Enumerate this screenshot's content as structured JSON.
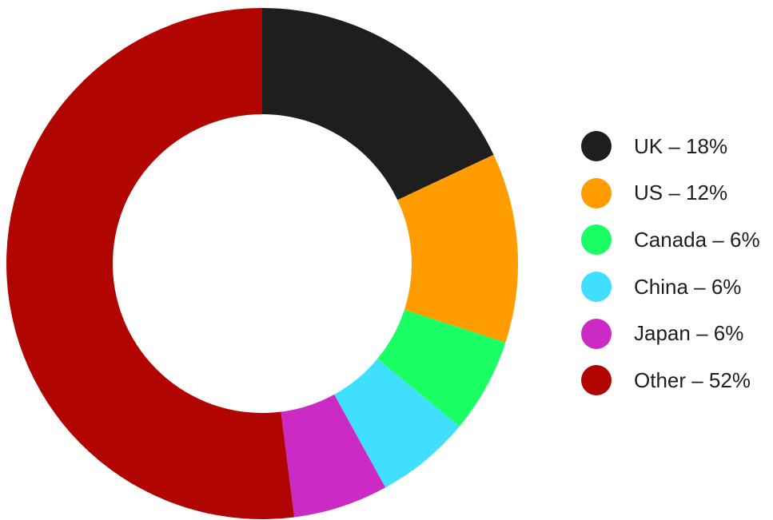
{
  "chart_data": {
    "type": "pie",
    "title": "",
    "categories": [
      "UK",
      "US",
      "Canada",
      "China",
      "Japan",
      "Other"
    ],
    "values": [
      18,
      12,
      6,
      6,
      6,
      52
    ],
    "colors": [
      "#1e1e1e",
      "#ff9c00",
      "#1aff63",
      "#41dfff",
      "#cc2ac4",
      "#b00500"
    ],
    "legend_labels": [
      "UK – 18%",
      "US – 12%",
      "Canada – 6%",
      "China – 6%",
      "Japan – 6%",
      "Other – 52%"
    ],
    "donut": true,
    "legend_position": "right"
  }
}
